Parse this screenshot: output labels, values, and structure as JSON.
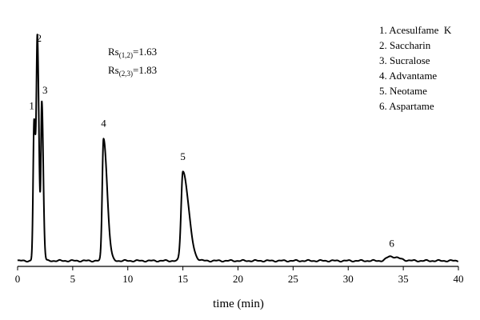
{
  "chart_data": {
    "type": "line",
    "xlabel": "time (min)",
    "ylabel": "",
    "xlim": [
      0,
      40
    ],
    "ylim": [
      0,
      1
    ],
    "x_ticks": [
      0,
      5,
      10,
      15,
      20,
      25,
      30,
      35,
      40
    ],
    "baseline": 0.045,
    "peaks": [
      {
        "number": "1",
        "name": "Acesulfame  K",
        "time": 1.5,
        "height": 0.68,
        "width": 0.09,
        "tail": 0.05
      },
      {
        "number": "2",
        "name": "Saccharin",
        "time": 1.8,
        "height": 1.0,
        "width": 0.09,
        "tail": 0.05
      },
      {
        "number": "3",
        "name": "Sucralose",
        "time": 2.2,
        "height": 0.75,
        "width": 0.08,
        "tail": 0.05
      },
      {
        "number": "4",
        "name": "Advantame",
        "time": 7.8,
        "height": 0.6,
        "width": 0.12,
        "tail": 0.2
      },
      {
        "number": "5",
        "name": "Neotame",
        "time": 15.0,
        "height": 0.45,
        "width": 0.16,
        "tail": 0.35
      },
      {
        "number": "6",
        "name": "Aspartame",
        "time": 33.8,
        "height": 0.065,
        "width": 0.3,
        "tail": 0.45
      }
    ],
    "annotations": [
      {
        "prefix": "Rs",
        "subscript": "(1,2)",
        "value": "=1.63"
      },
      {
        "prefix": "Rs",
        "subscript": "(2,3)",
        "value": "=1.83"
      }
    ],
    "legend_position": "top-right"
  }
}
